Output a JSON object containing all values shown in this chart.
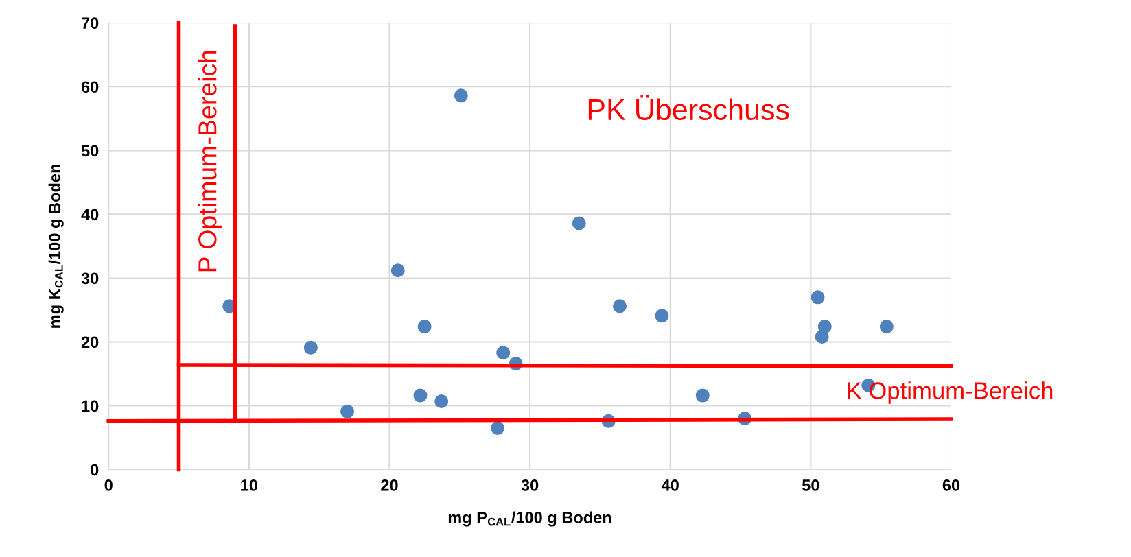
{
  "chart_data": {
    "type": "scatter",
    "xlabel": "mg P$_{CAL}$/100 g Boden",
    "ylabel": "mg K$_{CAL}$/100 g Boden",
    "xlim": [
      0,
      60
    ],
    "ylim": [
      0,
      70
    ],
    "xticks": [
      0,
      10,
      20,
      30,
      40,
      50,
      60
    ],
    "yticks": [
      0,
      10,
      20,
      30,
      40,
      50,
      60,
      70
    ],
    "grid": true,
    "series": [
      {
        "marker": "circle",
        "color": "#4f81bd",
        "x": [
          8.6,
          14.4,
          17.0,
          20.6,
          22.2,
          22.5,
          23.7,
          25.1,
          27.7,
          28.1,
          29.0,
          33.5,
          35.6,
          36.4,
          39.4,
          42.3,
          45.3,
          50.5,
          50.8,
          51.0,
          54.1,
          55.4
        ],
        "values": [
          25.6,
          19.1,
          9.1,
          31.2,
          11.6,
          22.4,
          10.7,
          58.6,
          6.5,
          18.3,
          16.6,
          38.6,
          7.6,
          25.6,
          24.1,
          11.6,
          8.0,
          27.0,
          20.8,
          22.4,
          13.2,
          22.4
        ]
      },
      {
        "type": "line",
        "color": "#ff0000",
        "x": [
          5,
          5
        ],
        "values": [
          0,
          70
        ]
      },
      {
        "type": "line",
        "color": "#ff0000",
        "x": [
          9,
          9
        ],
        "values": [
          7.7,
          69.5
        ]
      },
      {
        "type": "line",
        "color": "#ff0000",
        "x": [
          5,
          60
        ],
        "values": [
          16.4,
          16.2
        ]
      },
      {
        "type": "line",
        "color": "#ff0000",
        "x": [
          0,
          60
        ],
        "values": [
          7.6,
          7.9
        ]
      }
    ],
    "annotations": [
      "P Optimum-Bereich",
      "K Optimum-Bereich",
      "PK Überschuss"
    ]
  }
}
